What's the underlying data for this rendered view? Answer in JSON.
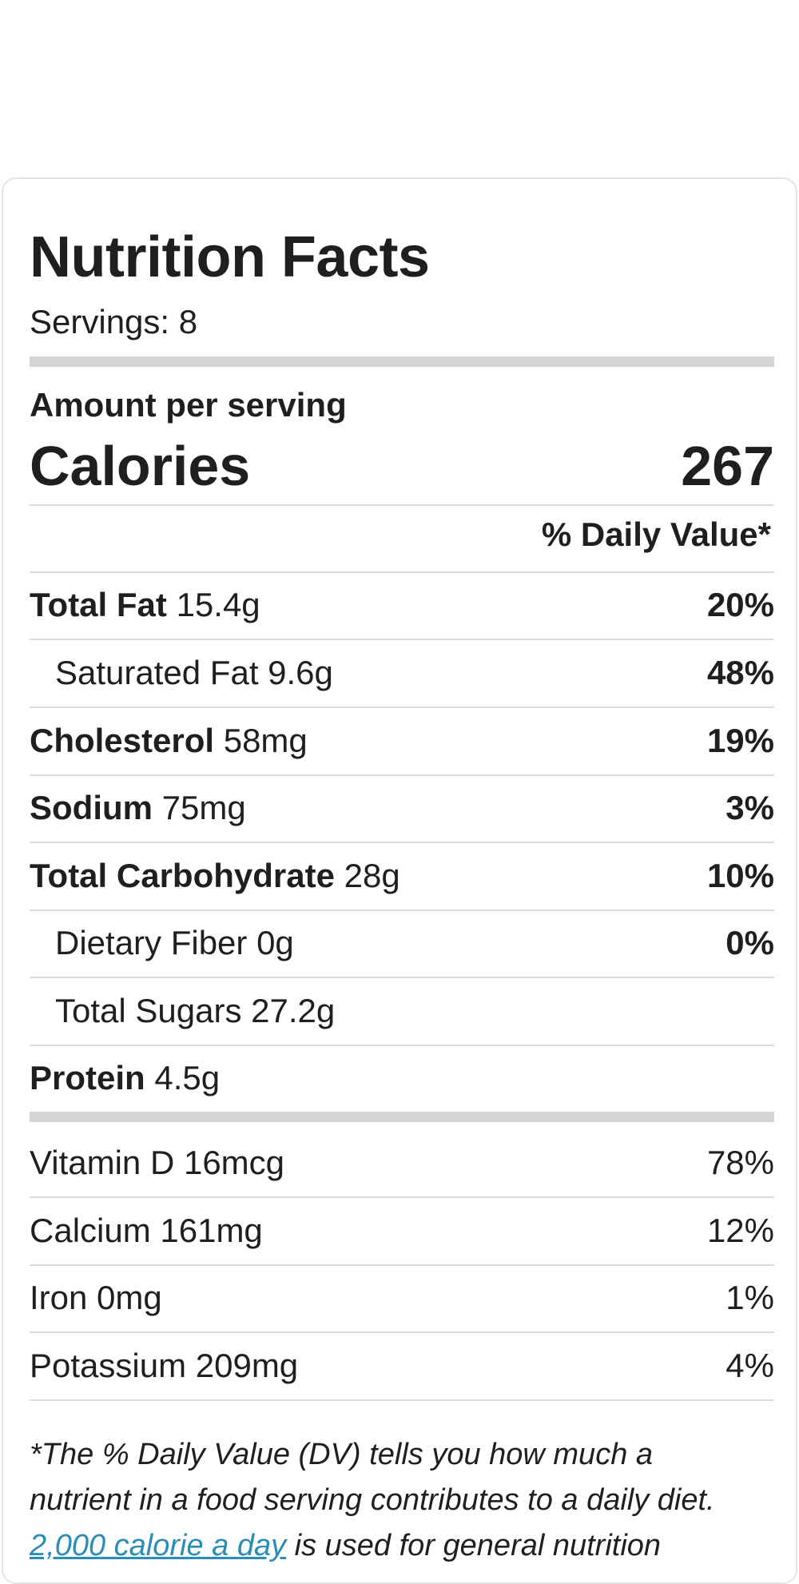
{
  "label": {
    "title": "Nutrition Facts",
    "servings": "Servings: 8",
    "amount_per_serving": "Amount per serving",
    "calories_label": "Calories",
    "calories_value": "267",
    "daily_value_header": "% Daily Value*"
  },
  "nutrients": [
    {
      "name": "Total Fat",
      "amount": "15.4g",
      "pct": "20%"
    },
    {
      "name": "Saturated Fat",
      "amount": "9.6g",
      "pct": "48%"
    },
    {
      "name": "Cholesterol",
      "amount": "58mg",
      "pct": "19%"
    },
    {
      "name": "Sodium",
      "amount": "75mg",
      "pct": "3%"
    },
    {
      "name": "Total Carbohydrate",
      "amount": "28g",
      "pct": "10%"
    },
    {
      "name": "Dietary Fiber",
      "amount": "0g",
      "pct": "0%"
    },
    {
      "name": "Total Sugars",
      "amount": "27.2g",
      "pct": ""
    },
    {
      "name": "Protein",
      "amount": "4.5g",
      "pct": ""
    }
  ],
  "vitamins": [
    {
      "name": "Vitamin D",
      "amount": "16mcg",
      "pct": "78%"
    },
    {
      "name": "Calcium",
      "amount": "161mg",
      "pct": "12%"
    },
    {
      "name": "Iron",
      "amount": "0mg",
      "pct": "1%"
    },
    {
      "name": "Potassium",
      "amount": "209mg",
      "pct": "4%"
    }
  ],
  "footnote": {
    "line1": "*The % Daily Value (DV) tells you how much a",
    "line2": "nutrient in a food serving contributes to a daily diet.",
    "link_text": "2,000 calorie a day",
    "line3_rest": " is used for general nutrition"
  },
  "colors": {
    "link": "#2a8db6",
    "thick_bar": "#d4d4d4",
    "divider": "#dcdcdc"
  }
}
